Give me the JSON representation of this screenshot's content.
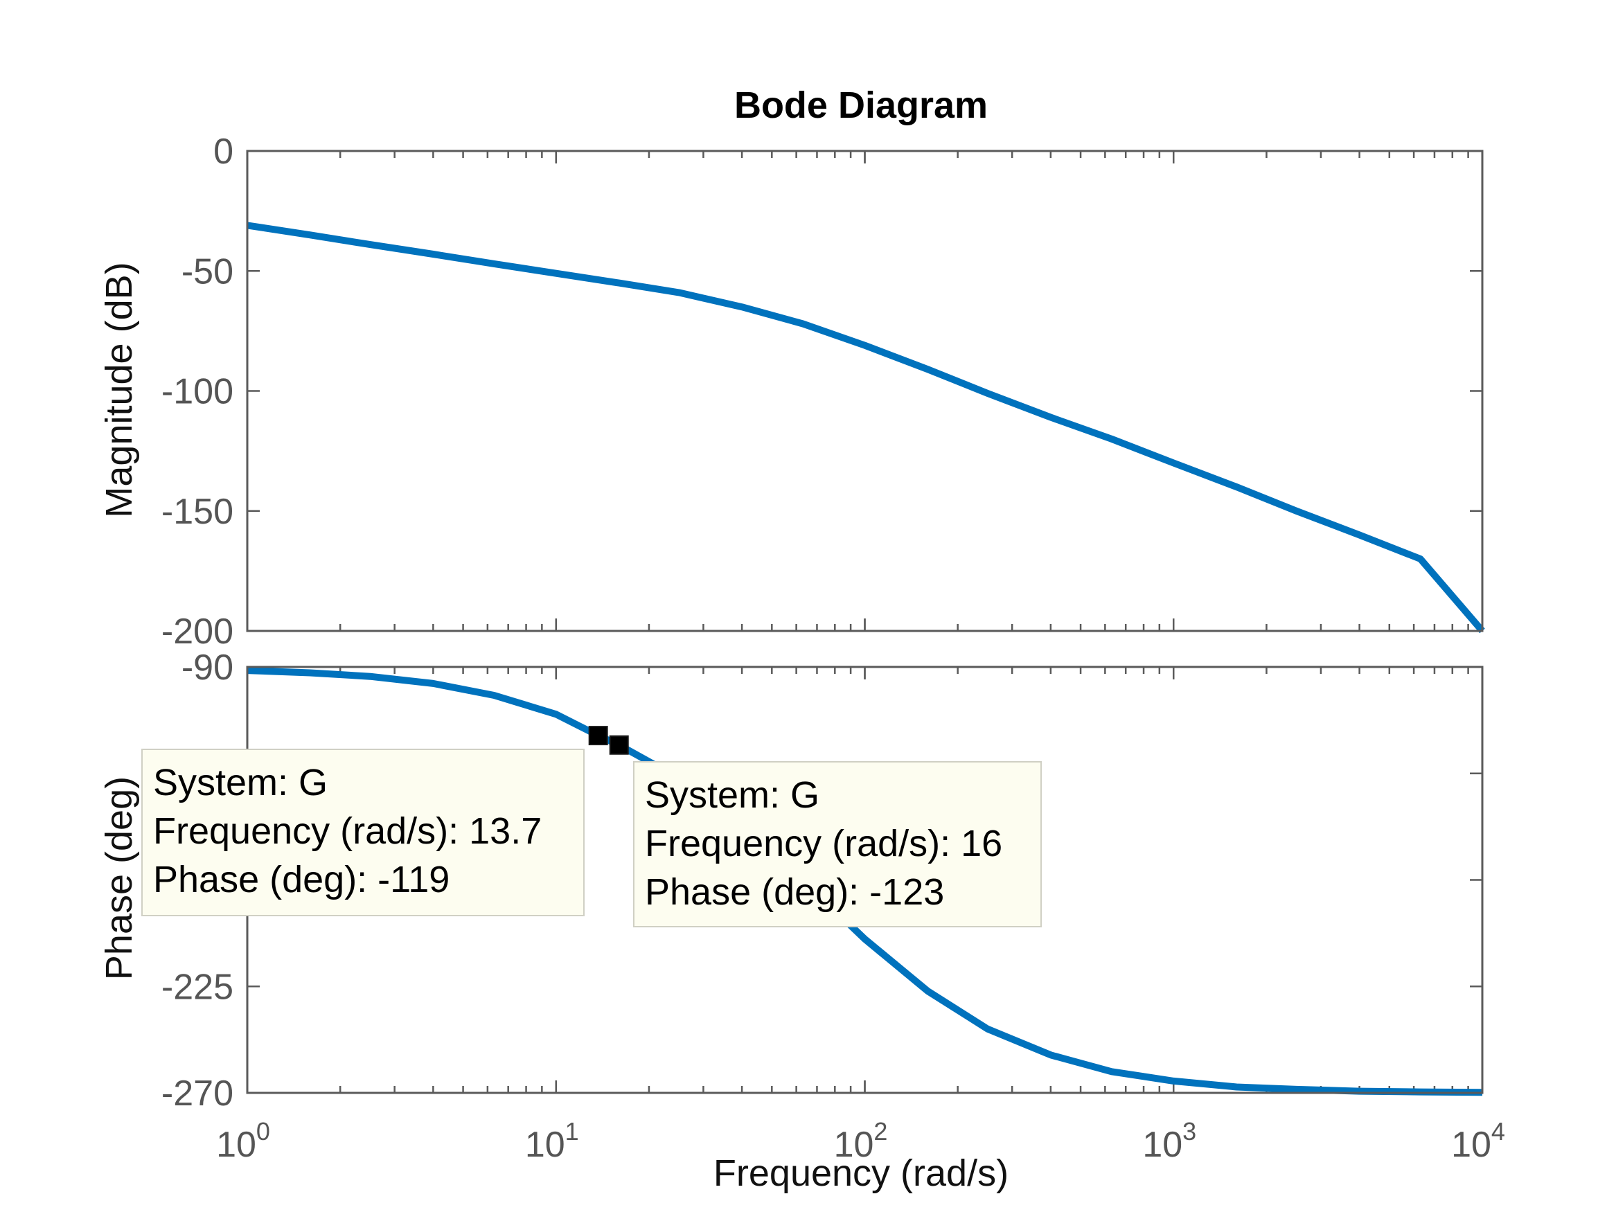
{
  "chart_data": {
    "type": "line",
    "title": "Bode Diagram",
    "xlabel": "Frequency  (rad/s)",
    "xscale": "log",
    "xlim": [
      1,
      10000
    ],
    "x_tick_labels": [
      {
        "base": "10",
        "exp": "0"
      },
      {
        "base": "10",
        "exp": "1"
      },
      {
        "base": "10",
        "exp": "2"
      },
      {
        "base": "10",
        "exp": "3"
      },
      {
        "base": "10",
        "exp": "4"
      }
    ],
    "grid": false,
    "panels": [
      {
        "name": "magnitude",
        "ylabel": "Magnitude (dB)",
        "ylim": [
          -200,
          0
        ],
        "y_ticks": [
          0,
          -50,
          -100,
          -150,
          -200
        ],
        "series": [
          {
            "color": "#0072BD",
            "x": [
              1,
              1.6,
              2.5,
              4,
              6.3,
              10,
              16,
              25,
              40,
              63,
              100,
              160,
              250,
              400,
              630,
              1000,
              1600,
              2500,
              4000,
              6300,
              10000
            ],
            "y": [
              -31,
              -35,
              -39,
              -43,
              -47,
              -51,
              -55,
              -59,
              -65,
              -72,
              -81,
              -91,
              -101,
              -111,
              -120,
              -130,
              -140,
              -150,
              -160,
              -170,
              -200
            ]
          }
        ]
      },
      {
        "name": "phase",
        "ylabel": "Phase (deg)",
        "ylim": [
          -270,
          -90
        ],
        "y_ticks": [
          -90,
          -225,
          -270
        ],
        "series": [
          {
            "color": "#0072BD",
            "x": [
              1,
              1.6,
              2.5,
              4,
              6.3,
              10,
              13.7,
              16,
              25,
              40,
              63,
              100,
              160,
              250,
              400,
              630,
              1000,
              1600,
              2500,
              4000,
              6300,
              10000
            ],
            "y": [
              -91.5,
              -92.5,
              -94,
              -97,
              -102,
              -110,
              -119,
              -123,
              -137,
              -156,
              -180,
              -205,
              -227,
              -243,
              -254,
              -261,
              -265,
              -267.5,
              -268.5,
              -269.3,
              -269.6,
              -269.8
            ]
          }
        ]
      }
    ],
    "annotations": [
      {
        "frequency": 13.7,
        "phase": -119,
        "lines": [
          "System: G",
          "Frequency (rad/s): 13.7",
          "Phase (deg): -119"
        ]
      },
      {
        "frequency": 16,
        "phase": -123,
        "lines": [
          "System: G",
          "Frequency (rad/s): 16",
          "Phase (deg): -123"
        ]
      }
    ]
  }
}
